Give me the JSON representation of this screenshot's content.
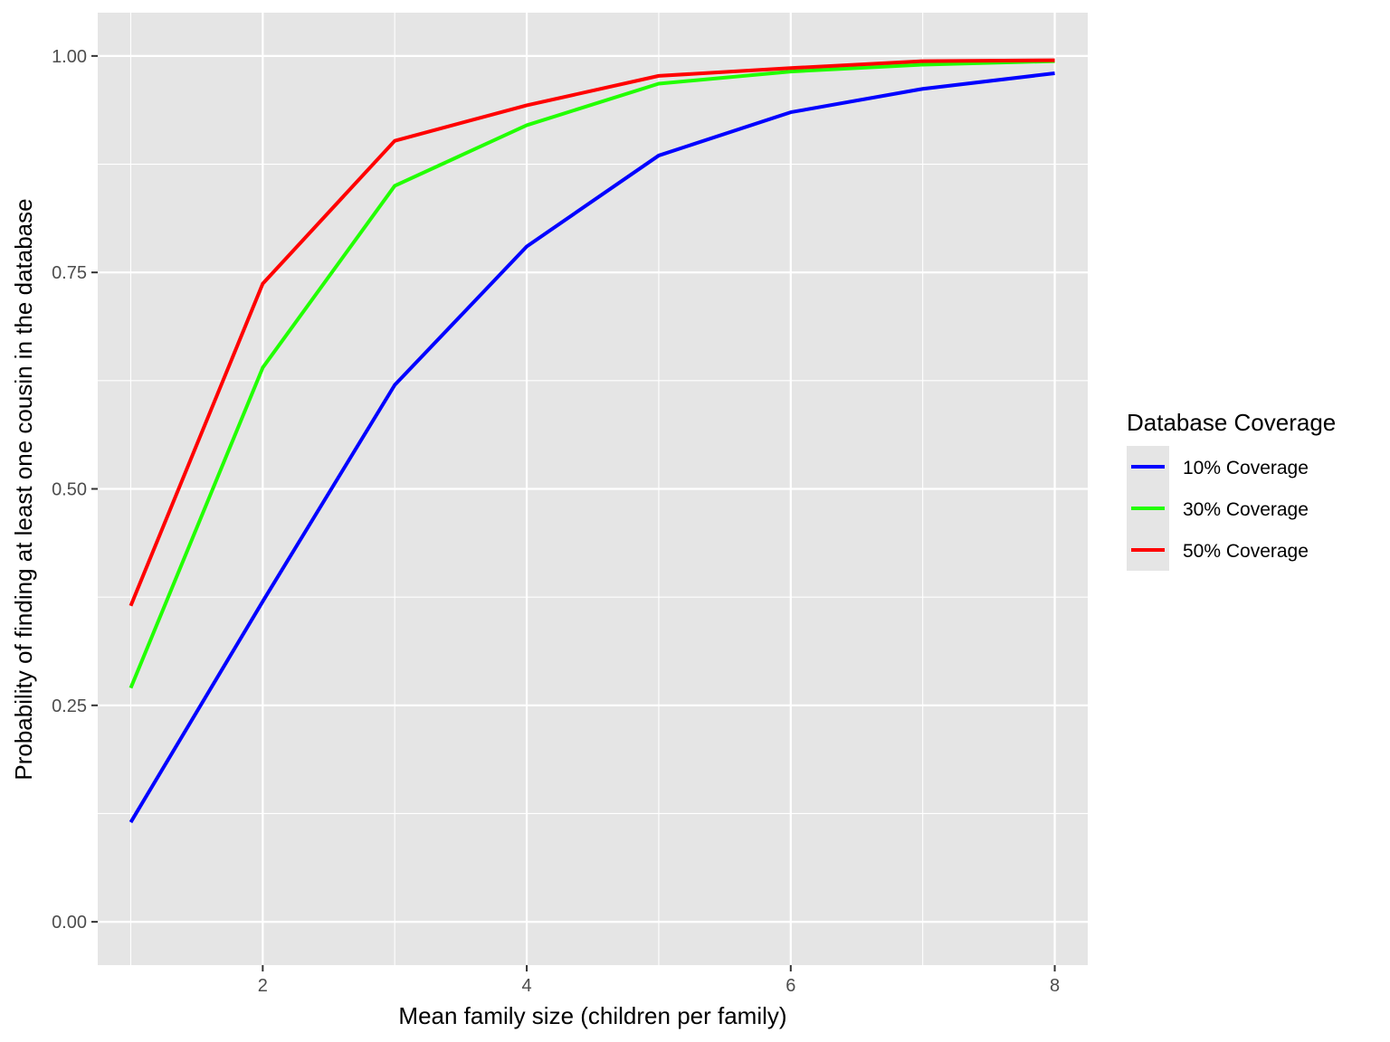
{
  "chart_data": {
    "type": "line",
    "title": "",
    "xlabel": "Mean family size (children per family)",
    "ylabel": "Probability of finding at least one cousin in the database",
    "x": [
      1,
      2,
      3,
      4,
      5,
      6,
      7,
      8
    ],
    "xlim": [
      0.75,
      8.25
    ],
    "ylim": [
      -0.05,
      1.05
    ],
    "x_ticks": [
      2,
      4,
      6,
      8
    ],
    "x_tick_labels": [
      "2",
      "4",
      "6",
      "8"
    ],
    "x_minor_ticks": [
      1,
      3,
      5,
      7
    ],
    "y_ticks": [
      0,
      0.25,
      0.5,
      0.75,
      1.0
    ],
    "y_tick_labels": [
      "0.00",
      "0.25",
      "0.50",
      "0.75",
      "1.00"
    ],
    "y_minor_ticks": [
      0.125,
      0.375,
      0.625,
      0.875
    ],
    "grid": true,
    "panel_background": "#e5e5e5",
    "legend": {
      "title": "Database Coverage",
      "position": "right"
    },
    "series": [
      {
        "name": "10% Coverage",
        "color": "#0000ff",
        "values": [
          0.115,
          0.37,
          0.62,
          0.78,
          0.885,
          0.935,
          0.962,
          0.98
        ]
      },
      {
        "name": "30% Coverage",
        "color": "#22ff00",
        "values": [
          0.27,
          0.64,
          0.85,
          0.92,
          0.968,
          0.982,
          0.99,
          0.994
        ]
      },
      {
        "name": "50% Coverage",
        "color": "#ff0000",
        "values": [
          0.365,
          0.737,
          0.902,
          0.943,
          0.977,
          0.986,
          0.994,
          0.995
        ]
      }
    ]
  }
}
